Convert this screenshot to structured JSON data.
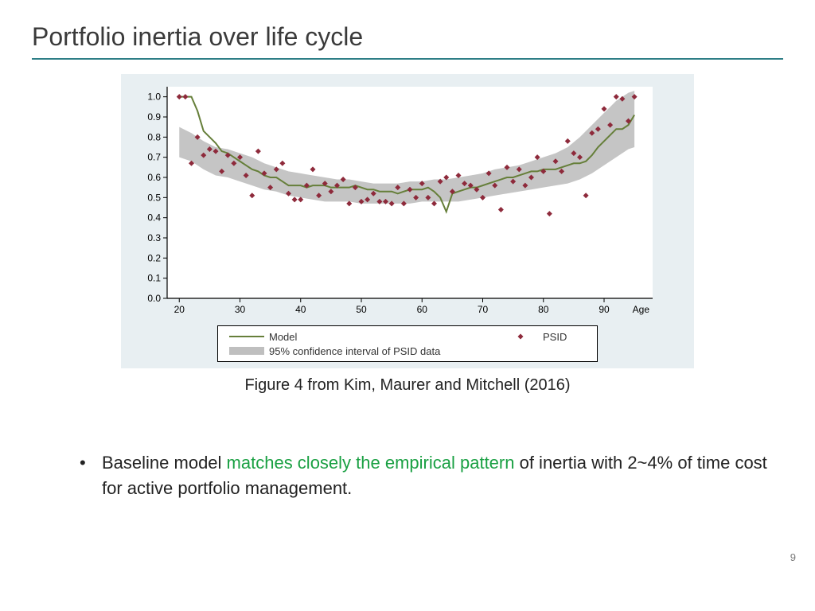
{
  "title": "Portfolio inertia over life cycle",
  "title_rule_color": "#2d7e86",
  "page_number": "9",
  "caption": "Figure 4 from Kim, Maurer and Mitchell (2016)",
  "bullet": {
    "prefix": "Baseline model ",
    "emph": "matches closely the empirical pattern",
    "suffix": " of inertia with 2~4% of time cost for active portfolio management.",
    "emph_color": "#1aa043"
  },
  "chart": {
    "type": "line+scatter+band",
    "outer_bg": "#e8eff2",
    "plot_bg": "#ffffff",
    "axis_color": "#000000",
    "tick_color": "#000000",
    "band_color": "#bfbfbf",
    "line_color": "#667f3a",
    "line_width": 2,
    "marker_color": "#8e2a3b",
    "marker_size": 3.5,
    "tick_fontsize": 12,
    "x_axis_label": "Age",
    "x": {
      "min": 18,
      "max": 98,
      "ticks": [
        20,
        30,
        40,
        50,
        60,
        70,
        80,
        90
      ]
    },
    "y": {
      "min": 0.0,
      "max": 1.05,
      "ticks": [
        0.0,
        0.1,
        0.2,
        0.3,
        0.4,
        0.5,
        0.6,
        0.7,
        0.8,
        0.9,
        1.0
      ]
    },
    "line_points": [
      {
        "x": 20,
        "y": 1.0
      },
      {
        "x": 21,
        "y": 1.0
      },
      {
        "x": 22,
        "y": 1.0
      },
      {
        "x": 23,
        "y": 0.93
      },
      {
        "x": 24,
        "y": 0.83
      },
      {
        "x": 25,
        "y": 0.8
      },
      {
        "x": 26,
        "y": 0.77
      },
      {
        "x": 27,
        "y": 0.73
      },
      {
        "x": 28,
        "y": 0.72
      },
      {
        "x": 29,
        "y": 0.7
      },
      {
        "x": 30,
        "y": 0.68
      },
      {
        "x": 31,
        "y": 0.66
      },
      {
        "x": 32,
        "y": 0.64
      },
      {
        "x": 33,
        "y": 0.63
      },
      {
        "x": 34,
        "y": 0.61
      },
      {
        "x": 35,
        "y": 0.6
      },
      {
        "x": 36,
        "y": 0.6
      },
      {
        "x": 37,
        "y": 0.58
      },
      {
        "x": 38,
        "y": 0.56
      },
      {
        "x": 39,
        "y": 0.56
      },
      {
        "x": 40,
        "y": 0.56
      },
      {
        "x": 41,
        "y": 0.55
      },
      {
        "x": 42,
        "y": 0.56
      },
      {
        "x": 43,
        "y": 0.56
      },
      {
        "x": 44,
        "y": 0.56
      },
      {
        "x": 45,
        "y": 0.55
      },
      {
        "x": 46,
        "y": 0.55
      },
      {
        "x": 47,
        "y": 0.55
      },
      {
        "x": 48,
        "y": 0.55
      },
      {
        "x": 49,
        "y": 0.56
      },
      {
        "x": 50,
        "y": 0.55
      },
      {
        "x": 51,
        "y": 0.54
      },
      {
        "x": 52,
        "y": 0.54
      },
      {
        "x": 53,
        "y": 0.53
      },
      {
        "x": 54,
        "y": 0.53
      },
      {
        "x": 55,
        "y": 0.53
      },
      {
        "x": 56,
        "y": 0.52
      },
      {
        "x": 57,
        "y": 0.53
      },
      {
        "x": 58,
        "y": 0.54
      },
      {
        "x": 59,
        "y": 0.54
      },
      {
        "x": 60,
        "y": 0.54
      },
      {
        "x": 61,
        "y": 0.55
      },
      {
        "x": 62,
        "y": 0.53
      },
      {
        "x": 63,
        "y": 0.5
      },
      {
        "x": 64,
        "y": 0.43
      },
      {
        "x": 65,
        "y": 0.52
      },
      {
        "x": 66,
        "y": 0.53
      },
      {
        "x": 67,
        "y": 0.54
      },
      {
        "x": 68,
        "y": 0.55
      },
      {
        "x": 69,
        "y": 0.55
      },
      {
        "x": 70,
        "y": 0.56
      },
      {
        "x": 71,
        "y": 0.57
      },
      {
        "x": 72,
        "y": 0.58
      },
      {
        "x": 73,
        "y": 0.59
      },
      {
        "x": 74,
        "y": 0.6
      },
      {
        "x": 75,
        "y": 0.6
      },
      {
        "x": 76,
        "y": 0.61
      },
      {
        "x": 77,
        "y": 0.62
      },
      {
        "x": 78,
        "y": 0.63
      },
      {
        "x": 79,
        "y": 0.63
      },
      {
        "x": 80,
        "y": 0.64
      },
      {
        "x": 81,
        "y": 0.64
      },
      {
        "x": 82,
        "y": 0.64
      },
      {
        "x": 83,
        "y": 0.65
      },
      {
        "x": 84,
        "y": 0.66
      },
      {
        "x": 85,
        "y": 0.67
      },
      {
        "x": 86,
        "y": 0.67
      },
      {
        "x": 87,
        "y": 0.68
      },
      {
        "x": 88,
        "y": 0.71
      },
      {
        "x": 89,
        "y": 0.75
      },
      {
        "x": 90,
        "y": 0.78
      },
      {
        "x": 91,
        "y": 0.81
      },
      {
        "x": 92,
        "y": 0.84
      },
      {
        "x": 93,
        "y": 0.84
      },
      {
        "x": 94,
        "y": 0.86
      },
      {
        "x": 95,
        "y": 0.91
      }
    ],
    "band": [
      {
        "x": 20,
        "lo": 0.7,
        "hi": 0.85
      },
      {
        "x": 22,
        "lo": 0.68,
        "hi": 0.82
      },
      {
        "x": 24,
        "lo": 0.64,
        "hi": 0.78
      },
      {
        "x": 26,
        "lo": 0.61,
        "hi": 0.75
      },
      {
        "x": 28,
        "lo": 0.6,
        "hi": 0.74
      },
      {
        "x": 30,
        "lo": 0.58,
        "hi": 0.72
      },
      {
        "x": 32,
        "lo": 0.56,
        "hi": 0.7
      },
      {
        "x": 34,
        "lo": 0.54,
        "hi": 0.67
      },
      {
        "x": 36,
        "lo": 0.53,
        "hi": 0.65
      },
      {
        "x": 38,
        "lo": 0.51,
        "hi": 0.63
      },
      {
        "x": 40,
        "lo": 0.5,
        "hi": 0.62
      },
      {
        "x": 42,
        "lo": 0.49,
        "hi": 0.61
      },
      {
        "x": 44,
        "lo": 0.48,
        "hi": 0.6
      },
      {
        "x": 46,
        "lo": 0.48,
        "hi": 0.59
      },
      {
        "x": 48,
        "lo": 0.48,
        "hi": 0.59
      },
      {
        "x": 50,
        "lo": 0.47,
        "hi": 0.58
      },
      {
        "x": 52,
        "lo": 0.47,
        "hi": 0.57
      },
      {
        "x": 54,
        "lo": 0.47,
        "hi": 0.57
      },
      {
        "x": 56,
        "lo": 0.47,
        "hi": 0.57
      },
      {
        "x": 58,
        "lo": 0.47,
        "hi": 0.58
      },
      {
        "x": 60,
        "lo": 0.48,
        "hi": 0.58
      },
      {
        "x": 62,
        "lo": 0.48,
        "hi": 0.59
      },
      {
        "x": 64,
        "lo": 0.48,
        "hi": 0.59
      },
      {
        "x": 66,
        "lo": 0.48,
        "hi": 0.6
      },
      {
        "x": 68,
        "lo": 0.49,
        "hi": 0.61
      },
      {
        "x": 70,
        "lo": 0.5,
        "hi": 0.62
      },
      {
        "x": 72,
        "lo": 0.51,
        "hi": 0.64
      },
      {
        "x": 74,
        "lo": 0.52,
        "hi": 0.65
      },
      {
        "x": 76,
        "lo": 0.53,
        "hi": 0.66
      },
      {
        "x": 78,
        "lo": 0.54,
        "hi": 0.68
      },
      {
        "x": 80,
        "lo": 0.55,
        "hi": 0.7
      },
      {
        "x": 82,
        "lo": 0.56,
        "hi": 0.72
      },
      {
        "x": 84,
        "lo": 0.57,
        "hi": 0.75
      },
      {
        "x": 86,
        "lo": 0.59,
        "hi": 0.8
      },
      {
        "x": 88,
        "lo": 0.62,
        "hi": 0.86
      },
      {
        "x": 90,
        "lo": 0.66,
        "hi": 0.92
      },
      {
        "x": 92,
        "lo": 0.7,
        "hi": 0.98
      },
      {
        "x": 94,
        "lo": 0.74,
        "hi": 1.02
      },
      {
        "x": 95,
        "lo": 0.75,
        "hi": 1.03
      }
    ],
    "scatter": [
      {
        "x": 20,
        "y": 1.0
      },
      {
        "x": 21,
        "y": 1.0
      },
      {
        "x": 22,
        "y": 0.67
      },
      {
        "x": 23,
        "y": 0.8
      },
      {
        "x": 24,
        "y": 0.71
      },
      {
        "x": 25,
        "y": 0.74
      },
      {
        "x": 26,
        "y": 0.73
      },
      {
        "x": 27,
        "y": 0.63
      },
      {
        "x": 28,
        "y": 0.71
      },
      {
        "x": 29,
        "y": 0.67
      },
      {
        "x": 30,
        "y": 0.7
      },
      {
        "x": 31,
        "y": 0.61
      },
      {
        "x": 32,
        "y": 0.51
      },
      {
        "x": 33,
        "y": 0.73
      },
      {
        "x": 34,
        "y": 0.62
      },
      {
        "x": 35,
        "y": 0.55
      },
      {
        "x": 36,
        "y": 0.64
      },
      {
        "x": 37,
        "y": 0.67
      },
      {
        "x": 38,
        "y": 0.52
      },
      {
        "x": 39,
        "y": 0.49
      },
      {
        "x": 40,
        "y": 0.49
      },
      {
        "x": 41,
        "y": 0.56
      },
      {
        "x": 42,
        "y": 0.64
      },
      {
        "x": 43,
        "y": 0.51
      },
      {
        "x": 44,
        "y": 0.57
      },
      {
        "x": 45,
        "y": 0.53
      },
      {
        "x": 46,
        "y": 0.56
      },
      {
        "x": 47,
        "y": 0.59
      },
      {
        "x": 48,
        "y": 0.47
      },
      {
        "x": 49,
        "y": 0.55
      },
      {
        "x": 50,
        "y": 0.48
      },
      {
        "x": 51,
        "y": 0.49
      },
      {
        "x": 52,
        "y": 0.52
      },
      {
        "x": 53,
        "y": 0.48
      },
      {
        "x": 54,
        "y": 0.48
      },
      {
        "x": 55,
        "y": 0.47
      },
      {
        "x": 56,
        "y": 0.55
      },
      {
        "x": 57,
        "y": 0.47
      },
      {
        "x": 58,
        "y": 0.54
      },
      {
        "x": 59,
        "y": 0.5
      },
      {
        "x": 60,
        "y": 0.57
      },
      {
        "x": 61,
        "y": 0.5
      },
      {
        "x": 62,
        "y": 0.47
      },
      {
        "x": 63,
        "y": 0.58
      },
      {
        "x": 64,
        "y": 0.6
      },
      {
        "x": 65,
        "y": 0.53
      },
      {
        "x": 66,
        "y": 0.61
      },
      {
        "x": 67,
        "y": 0.57
      },
      {
        "x": 68,
        "y": 0.56
      },
      {
        "x": 69,
        "y": 0.54
      },
      {
        "x": 70,
        "y": 0.5
      },
      {
        "x": 71,
        "y": 0.62
      },
      {
        "x": 72,
        "y": 0.56
      },
      {
        "x": 73,
        "y": 0.44
      },
      {
        "x": 74,
        "y": 0.65
      },
      {
        "x": 75,
        "y": 0.58
      },
      {
        "x": 76,
        "y": 0.64
      },
      {
        "x": 77,
        "y": 0.56
      },
      {
        "x": 78,
        "y": 0.6
      },
      {
        "x": 79,
        "y": 0.7
      },
      {
        "x": 80,
        "y": 0.63
      },
      {
        "x": 81,
        "y": 0.42
      },
      {
        "x": 82,
        "y": 0.68
      },
      {
        "x": 83,
        "y": 0.63
      },
      {
        "x": 84,
        "y": 0.78
      },
      {
        "x": 85,
        "y": 0.72
      },
      {
        "x": 86,
        "y": 0.7
      },
      {
        "x": 87,
        "y": 0.51
      },
      {
        "x": 88,
        "y": 0.82
      },
      {
        "x": 89,
        "y": 0.84
      },
      {
        "x": 90,
        "y": 0.94
      },
      {
        "x": 91,
        "y": 0.86
      },
      {
        "x": 92,
        "y": 1.0
      },
      {
        "x": 93,
        "y": 0.99
      },
      {
        "x": 94,
        "y": 0.88
      },
      {
        "x": 95,
        "y": 1.0
      }
    ],
    "legend": {
      "model": "Model",
      "psid": "PSID",
      "band": "95% confidence interval of PSID data"
    }
  }
}
